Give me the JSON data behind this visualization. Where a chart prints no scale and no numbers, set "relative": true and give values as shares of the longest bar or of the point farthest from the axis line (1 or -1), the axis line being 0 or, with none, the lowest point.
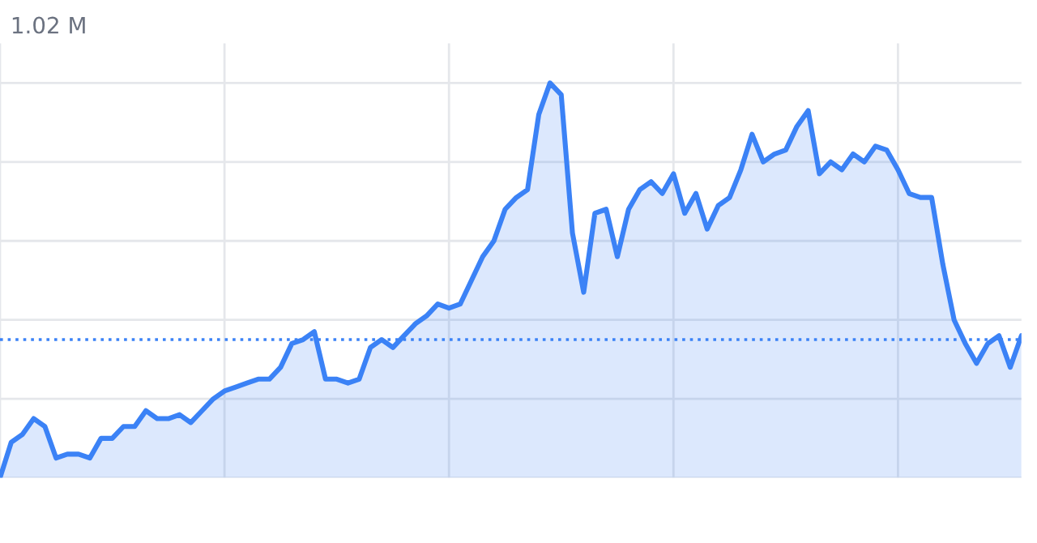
{
  "chart_data": {
    "type": "area",
    "relative": true,
    "annotations": [
      "1.02 M"
    ],
    "grid": true,
    "legend": false,
    "categories": [
      null,
      null,
      null,
      null,
      null,
      null,
      null,
      null,
      null,
      null,
      null,
      null,
      null,
      null,
      null,
      null,
      null,
      null,
      null,
      null,
      null,
      null,
      null,
      null,
      null,
      null,
      null,
      null,
      null,
      null,
      null,
      null,
      null,
      null,
      null,
      null,
      null,
      null,
      null,
      null,
      null,
      null,
      null,
      null,
      null,
      null,
      null,
      null,
      null,
      null,
      null,
      null,
      null,
      null,
      null,
      null,
      null,
      null,
      null,
      null,
      null,
      null,
      null,
      null,
      null,
      null,
      null,
      null,
      null,
      null,
      null,
      null,
      null,
      null,
      null,
      null,
      null,
      null,
      null,
      null,
      null,
      null,
      null,
      null,
      null,
      null,
      null,
      null,
      null,
      null,
      null,
      null
    ],
    "series": [
      {
        "color": "#3b82f6",
        "values": [
          0,
          0.09,
          0.11,
          0.15,
          0.13,
          0.05,
          0.06,
          0.06,
          0.05,
          0.1,
          0.1,
          0.13,
          0.13,
          0.17,
          0.15,
          0.15,
          0.16,
          0.14,
          0.17,
          0.2,
          0.22,
          0.23,
          0.24,
          0.25,
          0.25,
          0.28,
          0.34,
          0.35,
          0.37,
          0.25,
          0.25,
          0.24,
          0.25,
          0.33,
          0.35,
          0.33,
          0.36,
          0.39,
          0.41,
          0.44,
          0.43,
          0.44,
          0.5,
          0.56,
          0.6,
          0.68,
          0.71,
          0.73,
          0.92,
          1,
          0.97,
          0.62,
          0.47,
          0.67,
          0.68,
          0.56,
          0.68,
          0.73,
          0.75,
          0.72,
          0.77,
          0.67,
          0.72,
          0.63,
          0.69,
          0.71,
          0.78,
          0.87,
          0.8,
          0.82,
          0.83,
          0.89,
          0.93,
          0.77,
          0.8,
          0.78,
          0.82,
          0.8,
          0.84,
          0.83,
          0.78,
          0.72,
          0.71,
          0.71,
          0.54,
          0.4,
          0.34,
          0.29,
          0.34,
          0.36,
          0.28,
          0.36
        ]
      }
    ],
    "ref_lines": [
      {
        "axis": "y",
        "value": 0.35,
        "color": "#3b82f6",
        "line_style": "dotted"
      }
    ]
  }
}
